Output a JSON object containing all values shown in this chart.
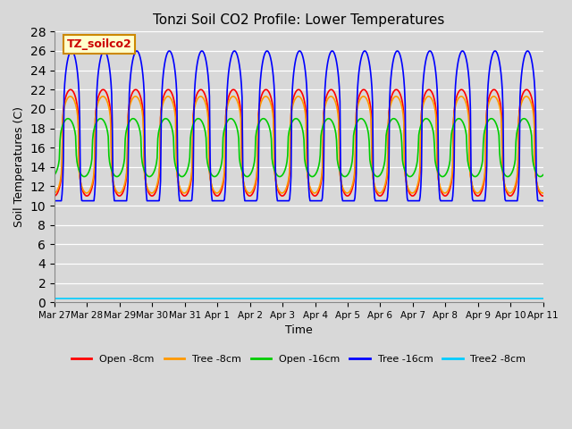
{
  "title": "Tonzi Soil CO2 Profile: Lower Temperatures",
  "xlabel": "Time",
  "ylabel": "Soil Temperatures (C)",
  "ylim": [
    0,
    28
  ],
  "yticks": [
    0,
    2,
    4,
    6,
    8,
    10,
    12,
    14,
    16,
    18,
    20,
    22,
    24,
    26,
    28
  ],
  "background_color": "#d8d8d8",
  "plot_bg_color": "#d8d8d8",
  "watermark_text": "TZ_soilco2",
  "watermark_bg": "#ffffcc",
  "watermark_border": "#cc8800",
  "series_order": [
    "open_8cm",
    "tree_8cm",
    "open_16cm",
    "tree_16cm",
    "tree2_8cm"
  ],
  "series": {
    "open_8cm": {
      "color": "#ff0000",
      "label": "Open -8cm",
      "lw": 1.2
    },
    "tree_8cm": {
      "color": "#ff9900",
      "label": "Tree -8cm",
      "lw": 1.2
    },
    "open_16cm": {
      "color": "#00cc00",
      "label": "Open -16cm",
      "lw": 1.2
    },
    "tree_16cm": {
      "color": "#0000ff",
      "label": "Tree -16cm",
      "lw": 1.2
    },
    "tree2_8cm": {
      "color": "#00ccff",
      "label": "Tree2 -8cm",
      "lw": 1.2
    }
  },
  "tick_labels": [
    "Mar 27",
    "Mar 28",
    "Mar 29",
    "Mar 30",
    "Mar 31",
    "Apr 1",
    "Apr 2",
    "Apr 3",
    "Apr 4",
    "Apr 5",
    "Apr 6",
    "Apr 7",
    "Apr 8",
    "Apr 9",
    "Apr 10",
    "Apr 11"
  ]
}
